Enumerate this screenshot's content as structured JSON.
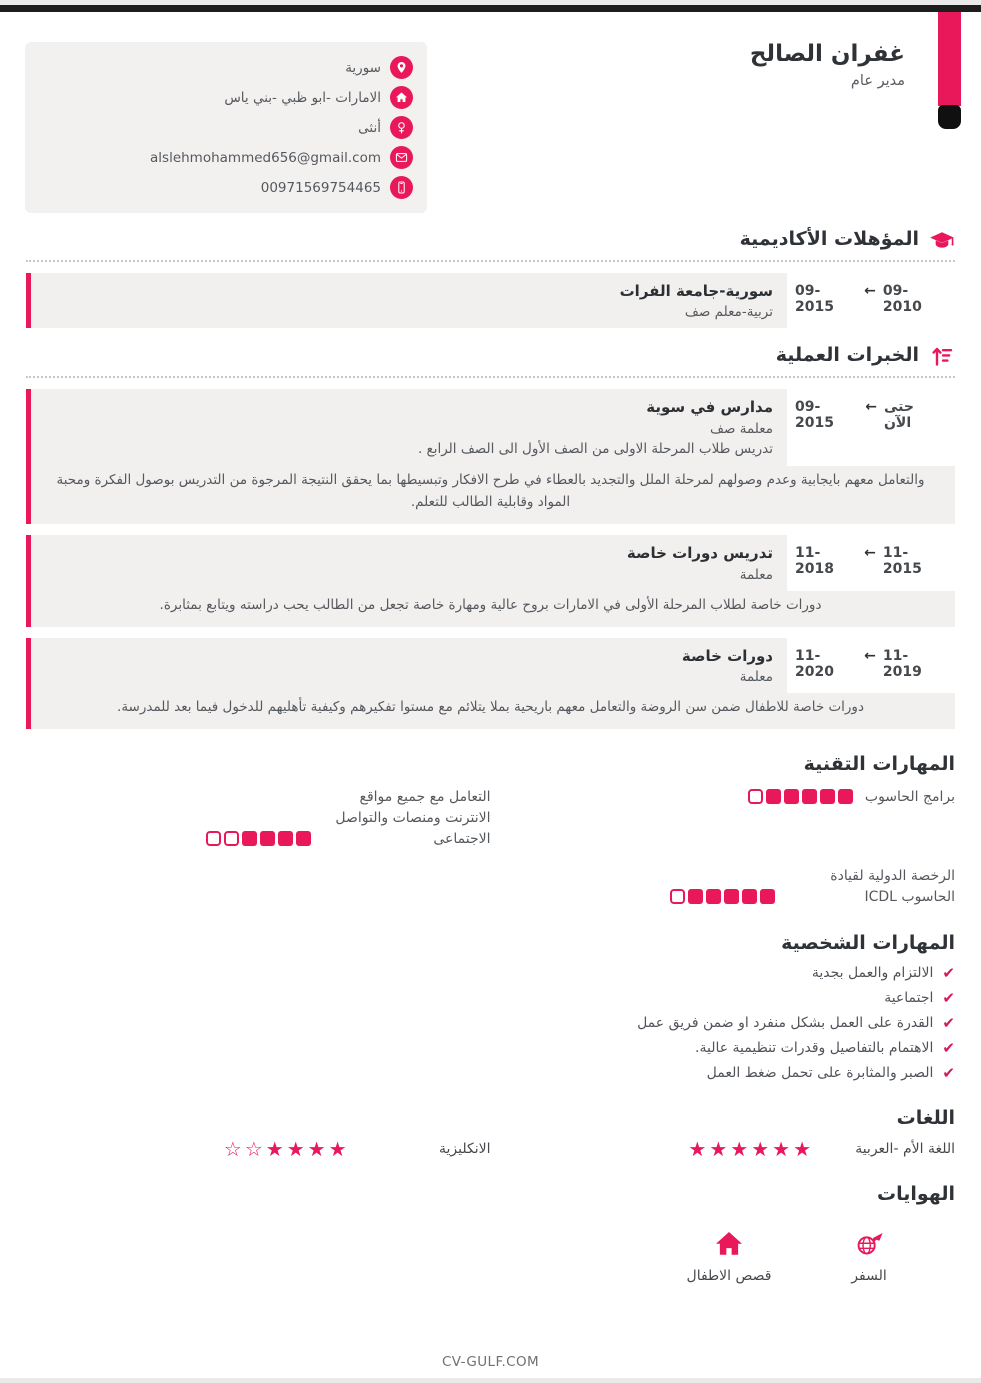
{
  "page": {
    "footer": "CV-GULF.COM"
  },
  "colors": {
    "accent": "#e9185a",
    "entry_box_bg": "#f1f0ef",
    "top_bar": "#1d1d1d",
    "ribbon_cap": "#101010"
  },
  "icons": {
    "arrow_left": "←",
    "check": "✔",
    "star_filled": "★",
    "star_outline": "☆"
  },
  "header": {
    "name": "غفران الصالح",
    "title": "مدير عام"
  },
  "contact": {
    "items": [
      {
        "icon": "location-pin-icon",
        "text": "سورية"
      },
      {
        "icon": "home-icon",
        "text": "الامارات -ابو ظبي -بني ياس"
      },
      {
        "icon": "gender-icon",
        "text": "أنثى"
      },
      {
        "icon": "email-icon",
        "text": "alslehmohammed656@gmail.com"
      },
      {
        "icon": "phone-icon",
        "text": "00971569754465"
      }
    ]
  },
  "education": {
    "section_title": "المؤهلات الأكاديمية",
    "entries": [
      {
        "date_left": "09-2015",
        "date_right": "09-2010",
        "title": "سورية-جامعة الفرات",
        "subtitle": "تربية-معلم صف"
      }
    ]
  },
  "experience": {
    "section_title": "الخبرات العملية",
    "entries": [
      {
        "date_left": "09-2015",
        "date_right": "حتى الآن",
        "title": "مدارس في سوية",
        "subtitle": "معلمة صف",
        "description": "تدريس طلاب المرحلة الاولى من الصف الأول الى الصف الرابع .",
        "paragraph": "والتعامل معهم بايجابية وعدم وصولهم لمرحلة الملل والتجديد بالعطاء في طرح الافكار وتبسيطها بما يحقق النتيجة المرجوة من التدريس بوصول الفكرة ومحبة المواد وقابلية الطالب للتعلم."
      },
      {
        "date_left": "11-2018",
        "date_right": "11-2015",
        "title": "تدريس دورات خاصة",
        "subtitle": "معلمة",
        "paragraph": "دورات خاصة لطلاب المرحلة الأولى في الامارات بروح عالية ومهارة خاصة تجعل من الطالب يحب دراسته ويتابع بمثابرة."
      },
      {
        "date_left": "11-2020",
        "date_right": "11-2019",
        "title": "دورات خاصة",
        "subtitle": "معلمة",
        "paragraph": "دورات خاصة للاطفال ضمن سن الروضة والتعامل معهم باريحية بملا يتلائم مع مستوا تفكيرهم وكيفية تأهليهم للدخول فيما بعد للمدرسة."
      }
    ]
  },
  "technical_skills": {
    "section_title": "المهارات التقنية",
    "skills": [
      {
        "label": "برامج الحاسوب",
        "rating": 5,
        "max": 6
      },
      {
        "label": "التعامل مع جميع مواقع الانترنت ومنصات والتواصل الاجتماعى",
        "rating": 4,
        "max": 6
      },
      {
        "label": "الرخصة الدولية لقيادة الحاسوب ICDL",
        "rating": 5,
        "max": 6
      }
    ]
  },
  "personal_skills": {
    "section_title": "المهارات الشخصية",
    "items": [
      "الالتزام والعمل بجدية",
      "اجتماعية",
      "القدرة على العمل بشكل منفرد او ضمن فريق عمل",
      "الاهتمام بالتفاصيل وقدرات تنظيمية عالية.",
      "الصبر والمثابرة على تحمل ضغط العمل"
    ]
  },
  "languages": {
    "section_title": "اللغات",
    "items": [
      {
        "label": "اللغة الأم -العربية",
        "rating": 6,
        "max": 6
      },
      {
        "label": "الانكليزية",
        "rating": 4,
        "max": 6
      }
    ]
  },
  "hobbies": {
    "section_title": "الهوايات",
    "items": [
      {
        "icon": "travel-globe-icon",
        "label": "السفر"
      },
      {
        "icon": "house-icon",
        "label": "قصص الاطفال"
      }
    ]
  }
}
